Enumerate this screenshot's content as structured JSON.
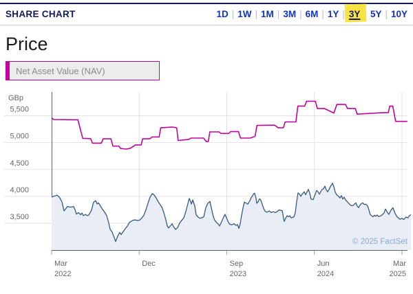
{
  "header": {
    "title": "SHARE CHART",
    "separator": "|",
    "ranges": [
      {
        "label": "1D",
        "active": false
      },
      {
        "label": "1W",
        "active": false
      },
      {
        "label": "1M",
        "active": false
      },
      {
        "label": "3M",
        "active": false
      },
      {
        "label": "6M",
        "active": false
      },
      {
        "label": "1Y",
        "active": false
      },
      {
        "label": "3Y",
        "active": true
      },
      {
        "label": "5Y",
        "active": false
      },
      {
        "label": "10Y",
        "active": false
      }
    ]
  },
  "page_title": "Price",
  "legend": {
    "label": "Net Asset Value (NAV)"
  },
  "copyright": "© 2025 FactSet",
  "colors": {
    "navy": "#14195c",
    "link_blue": "#1033c4",
    "highlight_yellow": "#f7e341",
    "nav_magenta": "#c4009e",
    "price_blue": "#35587d",
    "price_fill": "#e9eef6",
    "grid": "#e2e2e2",
    "axis": "#606060",
    "tick": "#9aa0a6",
    "label_gray": "#666666",
    "copyright_blue": "#8ca7cf"
  },
  "chart_data": {
    "type": "line",
    "title": "Price",
    "range_selected": "3Y",
    "grid": true,
    "legend_position": "top-left",
    "y_axis": {
      "unit": "GBp",
      "ticks": [
        3500,
        4000,
        4500,
        5000,
        5500
      ],
      "range": [
        3000,
        5940
      ]
    },
    "x_axis": {
      "range_months": [
        0,
        36.92
      ],
      "ticks": [
        {
          "t": 0,
          "line1": "Mar",
          "line2": "2022",
          "align": "start"
        },
        {
          "t": 9,
          "line1": "Dec",
          "line2": "",
          "align": "start"
        },
        {
          "t": 18,
          "line1": "Sep",
          "line2": "2023",
          "align": "start"
        },
        {
          "t": 27,
          "line1": "Jun",
          "line2": "2024",
          "align": "start"
        },
        {
          "t": 36,
          "line1": "Mar",
          "line2": "2025",
          "align": "end"
        }
      ]
    },
    "series": [
      {
        "id": "price",
        "name": "Price",
        "style": "area",
        "color": "#35587d",
        "fill": "#e9eef6",
        "points": [
          [
            0,
            3990
          ],
          [
            0.35,
            4010
          ],
          [
            0.57,
            4020
          ],
          [
            0.78,
            3990
          ],
          [
            1.06,
            3900
          ],
          [
            1.27,
            3730
          ],
          [
            1.49,
            3780
          ],
          [
            1.63,
            3810
          ],
          [
            1.98,
            3800
          ],
          [
            2.26,
            3810
          ],
          [
            2.4,
            3755
          ],
          [
            2.55,
            3670
          ],
          [
            2.76,
            3700
          ],
          [
            2.97,
            3660
          ],
          [
            3.11,
            3690
          ],
          [
            3.25,
            3640
          ],
          [
            3.47,
            3665
          ],
          [
            3.68,
            3640
          ],
          [
            3.82,
            3655
          ],
          [
            4.1,
            3745
          ],
          [
            4.31,
            3890
          ],
          [
            4.53,
            3920
          ],
          [
            4.67,
            3860
          ],
          [
            4.81,
            3880
          ],
          [
            5.02,
            3820
          ],
          [
            5.23,
            3760
          ],
          [
            5.45,
            3705
          ],
          [
            5.66,
            3640
          ],
          [
            5.87,
            3505
          ],
          [
            6.01,
            3390
          ],
          [
            6.22,
            3335
          ],
          [
            6.44,
            3230
          ],
          [
            6.58,
            3160
          ],
          [
            6.79,
            3260
          ],
          [
            7.0,
            3330
          ],
          [
            7.14,
            3290
          ],
          [
            7.36,
            3345
          ],
          [
            7.57,
            3400
          ],
          [
            7.78,
            3445
          ],
          [
            7.99,
            3515
          ],
          [
            8.2,
            3540
          ],
          [
            8.42,
            3560
          ],
          [
            8.63,
            3560
          ],
          [
            8.84,
            3550
          ],
          [
            9.05,
            3560
          ],
          [
            9.27,
            3600
          ],
          [
            9.48,
            3650
          ],
          [
            9.69,
            3750
          ],
          [
            9.9,
            3870
          ],
          [
            10.11,
            3980
          ],
          [
            10.33,
            4050
          ],
          [
            10.47,
            4040
          ],
          [
            10.68,
            3990
          ],
          [
            10.89,
            3920
          ],
          [
            11.1,
            3860
          ],
          [
            11.32,
            3800
          ],
          [
            11.53,
            3700
          ],
          [
            11.74,
            3560
          ],
          [
            11.88,
            3450
          ],
          [
            12.02,
            3410
          ],
          [
            12.24,
            3460
          ],
          [
            12.38,
            3490
          ],
          [
            12.52,
            3440
          ],
          [
            12.73,
            3385
          ],
          [
            12.94,
            3420
          ],
          [
            13.15,
            3500
          ],
          [
            13.37,
            3555
          ],
          [
            13.58,
            3600
          ],
          [
            13.79,
            3720
          ],
          [
            14.0,
            3860
          ],
          [
            14.14,
            3960
          ],
          [
            14.29,
            3900
          ],
          [
            14.36,
            3855
          ],
          [
            14.5,
            3935
          ],
          [
            14.71,
            3820
          ],
          [
            14.85,
            3655
          ],
          [
            15.06,
            3615
          ],
          [
            15.21,
            3595
          ],
          [
            15.42,
            3600
          ],
          [
            15.63,
            3620
          ],
          [
            15.84,
            3790
          ],
          [
            16.05,
            3870
          ],
          [
            16.27,
            3905
          ],
          [
            16.48,
            3730
          ],
          [
            16.62,
            3620
          ],
          [
            16.76,
            3555
          ],
          [
            16.97,
            3510
          ],
          [
            17.12,
            3485
          ],
          [
            17.26,
            3450
          ],
          [
            17.47,
            3530
          ],
          [
            17.68,
            3620
          ],
          [
            17.82,
            3665
          ],
          [
            18.03,
            3575
          ],
          [
            18.18,
            3515
          ],
          [
            18.32,
            3480
          ],
          [
            18.53,
            3470
          ],
          [
            18.74,
            3490
          ],
          [
            18.95,
            3460
          ],
          [
            19.1,
            3475
          ],
          [
            19.24,
            3405
          ],
          [
            19.38,
            3495
          ],
          [
            19.52,
            3650
          ],
          [
            19.66,
            3780
          ],
          [
            19.8,
            3895
          ],
          [
            20.02,
            3870
          ],
          [
            20.16,
            3855
          ],
          [
            20.37,
            3920
          ],
          [
            20.51,
            3980
          ],
          [
            20.65,
            4010
          ],
          [
            20.72,
            4040
          ],
          [
            20.86,
            4060
          ],
          [
            21.01,
            3960
          ],
          [
            21.08,
            3870
          ],
          [
            21.22,
            3900
          ],
          [
            21.36,
            3955
          ],
          [
            21.5,
            3930
          ],
          [
            21.64,
            3850
          ],
          [
            21.78,
            3780
          ],
          [
            21.93,
            3725
          ],
          [
            22.14,
            3705
          ],
          [
            22.35,
            3730
          ],
          [
            22.56,
            3700
          ],
          [
            22.77,
            3715
          ],
          [
            22.99,
            3700
          ],
          [
            23.2,
            3720
          ],
          [
            23.34,
            3745
          ],
          [
            23.55,
            3740
          ],
          [
            23.69,
            3735
          ],
          [
            23.9,
            3535
          ],
          [
            24.04,
            3590
          ],
          [
            24.19,
            3640
          ],
          [
            24.33,
            3620
          ],
          [
            24.47,
            3640
          ],
          [
            24.61,
            3600
          ],
          [
            24.75,
            3610
          ],
          [
            24.9,
            3620
          ],
          [
            25.04,
            3700
          ],
          [
            25.18,
            3900
          ],
          [
            25.32,
            4065
          ],
          [
            25.46,
            4040
          ],
          [
            25.6,
            4000
          ],
          [
            25.74,
            4040
          ],
          [
            25.96,
            4085
          ],
          [
            26.1,
            4030
          ],
          [
            26.24,
            4080
          ],
          [
            26.38,
            4130
          ],
          [
            26.52,
            4060
          ],
          [
            26.66,
            3950
          ],
          [
            26.88,
            3940
          ],
          [
            27.02,
            4010
          ],
          [
            27.23,
            4110
          ],
          [
            27.37,
            4085
          ],
          [
            27.51,
            4040
          ],
          [
            27.65,
            4085
          ],
          [
            27.8,
            4130
          ],
          [
            27.94,
            4140
          ],
          [
            28.08,
            4190
          ],
          [
            28.22,
            4120
          ],
          [
            28.36,
            4085
          ],
          [
            28.5,
            4130
          ],
          [
            28.64,
            4180
          ],
          [
            28.86,
            4245
          ],
          [
            29.0,
            4180
          ],
          [
            29.14,
            4080
          ],
          [
            29.28,
            4030
          ],
          [
            29.49,
            4000
          ],
          [
            29.63,
            3970
          ],
          [
            29.77,
            4015
          ],
          [
            29.92,
            3950
          ],
          [
            30.06,
            3985
          ],
          [
            30.2,
            3935
          ],
          [
            30.41,
            3895
          ],
          [
            30.55,
            3865
          ],
          [
            30.76,
            3830
          ],
          [
            30.98,
            3830
          ],
          [
            31.12,
            3855
          ],
          [
            31.26,
            3880
          ],
          [
            31.4,
            3820
          ],
          [
            31.54,
            3790
          ],
          [
            31.68,
            3835
          ],
          [
            31.82,
            3865
          ],
          [
            31.97,
            3880
          ],
          [
            32.11,
            3850
          ],
          [
            32.25,
            3855
          ],
          [
            32.39,
            3840
          ],
          [
            32.53,
            3795
          ],
          [
            32.74,
            3660
          ],
          [
            32.88,
            3640
          ],
          [
            33.03,
            3620
          ],
          [
            33.17,
            3650
          ],
          [
            33.31,
            3630
          ],
          [
            33.45,
            3655
          ],
          [
            33.59,
            3625
          ],
          [
            33.8,
            3635
          ],
          [
            33.94,
            3655
          ],
          [
            34.16,
            3690
          ],
          [
            34.3,
            3765
          ],
          [
            34.51,
            3700
          ],
          [
            34.65,
            3665
          ],
          [
            34.86,
            3740
          ],
          [
            35.07,
            3790
          ],
          [
            35.29,
            3680
          ],
          [
            35.5,
            3620
          ],
          [
            35.78,
            3575
          ],
          [
            35.99,
            3590
          ],
          [
            36.2,
            3570
          ],
          [
            36.42,
            3615
          ],
          [
            36.6,
            3600
          ],
          [
            36.77,
            3640
          ],
          [
            36.92,
            3660
          ]
        ]
      },
      {
        "id": "nav",
        "name": "Net Asset Value (NAV)",
        "style": "line",
        "color": "#c4009e",
        "points": [
          [
            0,
            5460
          ],
          [
            0.2,
            5430
          ],
          [
            2.7,
            5425
          ],
          [
            3.2,
            5080
          ],
          [
            4.0,
            5075
          ],
          [
            4.2,
            4990
          ],
          [
            5.1,
            4990
          ],
          [
            5.3,
            5070
          ],
          [
            6.1,
            5070
          ],
          [
            6.3,
            4935
          ],
          [
            6.9,
            4935
          ],
          [
            7.1,
            4890
          ],
          [
            7.7,
            4880
          ],
          [
            8.1,
            4895
          ],
          [
            8.6,
            4955
          ],
          [
            9.2,
            4955
          ],
          [
            9.35,
            5070
          ],
          [
            10.1,
            5070
          ],
          [
            10.3,
            5105
          ],
          [
            11.05,
            5105
          ],
          [
            11.2,
            5275
          ],
          [
            12.4,
            5290
          ],
          [
            12.85,
            5275
          ],
          [
            13.0,
            5040
          ],
          [
            14.1,
            5060
          ],
          [
            14.3,
            5085
          ],
          [
            15.6,
            5085
          ],
          [
            15.9,
            5020
          ],
          [
            16.1,
            5020
          ],
          [
            16.25,
            5200
          ],
          [
            17.2,
            5200
          ],
          [
            17.4,
            5170
          ],
          [
            18.2,
            5170
          ],
          [
            18.4,
            5205
          ],
          [
            19.2,
            5205
          ],
          [
            19.4,
            5085
          ],
          [
            20.4,
            5085
          ],
          [
            20.9,
            5115
          ],
          [
            21.1,
            5320
          ],
          [
            22.9,
            5325
          ],
          [
            23.3,
            5275
          ],
          [
            23.8,
            5275
          ],
          [
            24.0,
            5385
          ],
          [
            25.1,
            5385
          ],
          [
            25.3,
            5680
          ],
          [
            26.0,
            5680
          ],
          [
            26.2,
            5770
          ],
          [
            27.1,
            5770
          ],
          [
            27.3,
            5635
          ],
          [
            28.0,
            5635
          ],
          [
            28.5,
            5595
          ],
          [
            29.0,
            5550
          ],
          [
            29.3,
            5710
          ],
          [
            30.2,
            5710
          ],
          [
            30.4,
            5635
          ],
          [
            31.2,
            5635
          ],
          [
            31.4,
            5530
          ],
          [
            33.8,
            5555
          ],
          [
            34.6,
            5560
          ],
          [
            34.75,
            5680
          ],
          [
            35.05,
            5680
          ],
          [
            35.35,
            5395
          ],
          [
            36.55,
            5395
          ]
        ]
      }
    ]
  }
}
